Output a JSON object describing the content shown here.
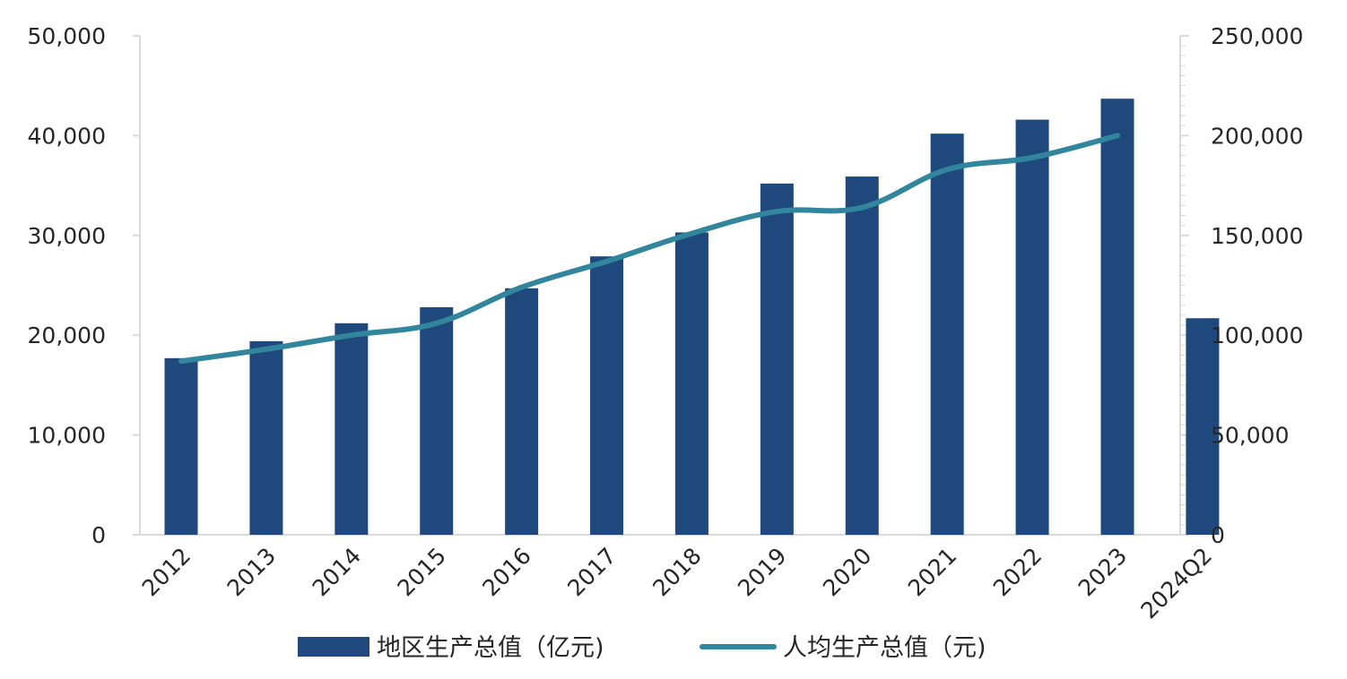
{
  "chart_data": {
    "type": "bar",
    "categories": [
      "2012",
      "2013",
      "2014",
      "2015",
      "2016",
      "2017",
      "2018",
      "2019",
      "2020",
      "2021",
      "2022",
      "2023",
      "2024Q2"
    ],
    "series": [
      {
        "name": "地区生产总值（亿元)",
        "type": "bar",
        "axis": "left",
        "color": "#1F497D",
        "values": [
          17700,
          19400,
          21200,
          22800,
          24700,
          27900,
          30300,
          35200,
          35900,
          40200,
          41600,
          43700,
          21700
        ]
      },
      {
        "name": "人均生产总值（元)",
        "type": "line",
        "axis": "right",
        "color": "#31859C",
        "values": [
          87000,
          93000,
          100000,
          106000,
          124000,
          137000,
          151000,
          162000,
          164000,
          183000,
          189000,
          200000,
          null
        ]
      }
    ],
    "y_left": {
      "range": [
        0,
        50000
      ],
      "ticks": [
        "0",
        "10,000",
        "20,000",
        "30,000",
        "40,000",
        "50,000"
      ]
    },
    "y_right": {
      "range": [
        0,
        250000
      ],
      "ticks": [
        "0",
        "50,000",
        "100,000",
        "150,000",
        "200,000",
        "250,000"
      ]
    },
    "grid": false,
    "legend": "bottom"
  }
}
